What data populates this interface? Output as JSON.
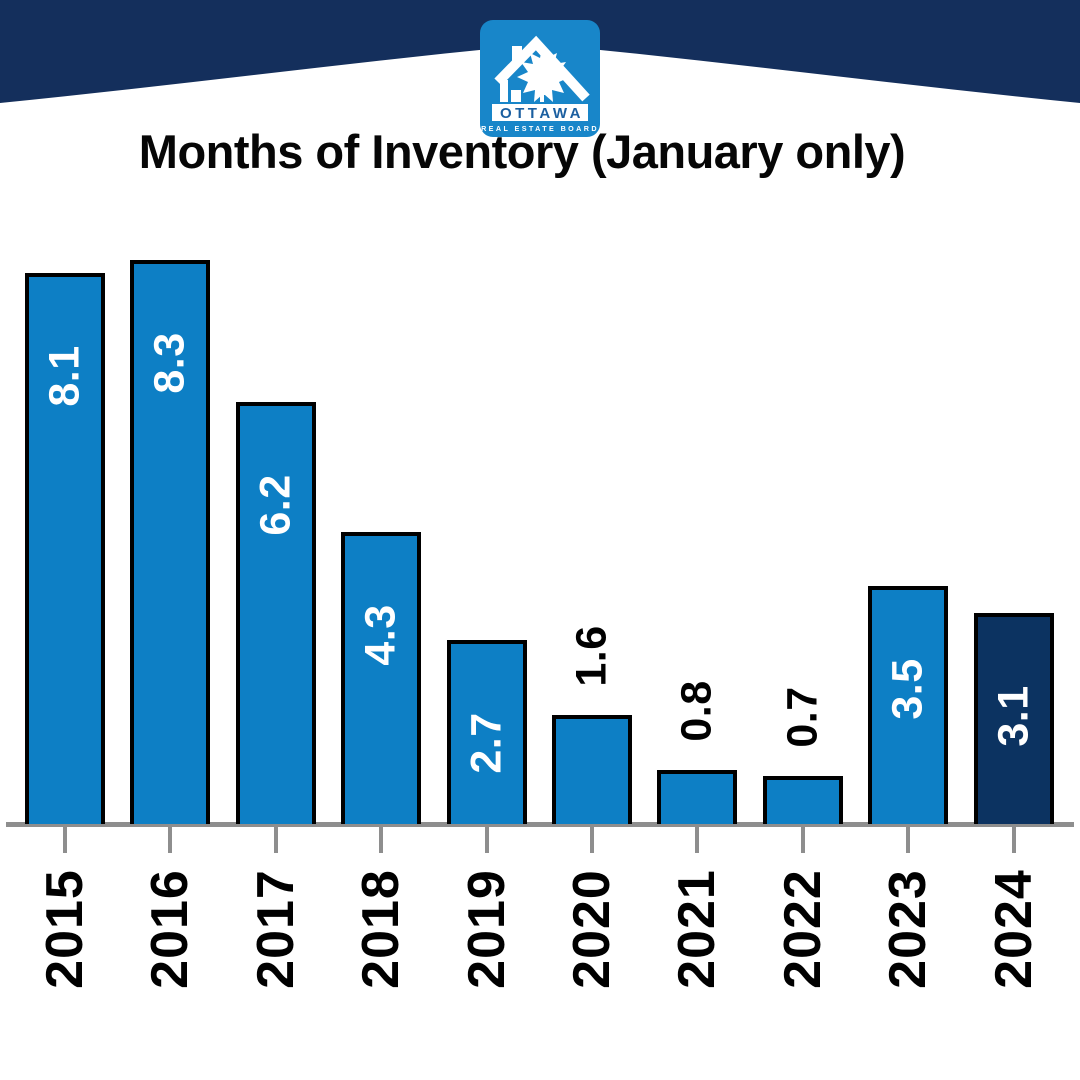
{
  "header": {
    "banner_color": "#142f5c",
    "logo": {
      "bg_color": "#1886c9",
      "org_name": "OTTAWA",
      "org_name_color": "#1b5fa0",
      "org_tagline": "REAL ESTATE BOARD",
      "org_tagline_color": "#ffffff"
    }
  },
  "chart_data": {
    "type": "bar",
    "title": "Months of Inventory (January only)",
    "categories": [
      "2015",
      "2016",
      "2017",
      "2018",
      "2019",
      "2020",
      "2021",
      "2022",
      "2023",
      "2024"
    ],
    "values": [
      8.1,
      8.3,
      6.2,
      4.3,
      2.7,
      1.6,
      0.8,
      0.7,
      3.5,
      3.1
    ],
    "value_labels": [
      "8.1",
      "8.3",
      "6.2",
      "4.3",
      "2.7",
      "1.6",
      "0.8",
      "0.7",
      "3.5",
      "3.1"
    ],
    "label_placement": [
      "inside",
      "inside",
      "inside",
      "inside",
      "inside",
      "outside",
      "outside",
      "outside",
      "inside",
      "inside"
    ],
    "xlabel": "",
    "ylabel": "",
    "ylim": [
      0,
      8.3
    ],
    "grid": false,
    "legend": false,
    "x_axis_labels_rotated": true,
    "bar_color": "#0d7fc5",
    "highlight_category": "2024",
    "highlight_color": "#0c3361",
    "bar_border_color": "#000000",
    "inside_label_color": "#ffffff",
    "outside_label_color": "#000000",
    "axis_color": "#8e8e8e"
  }
}
